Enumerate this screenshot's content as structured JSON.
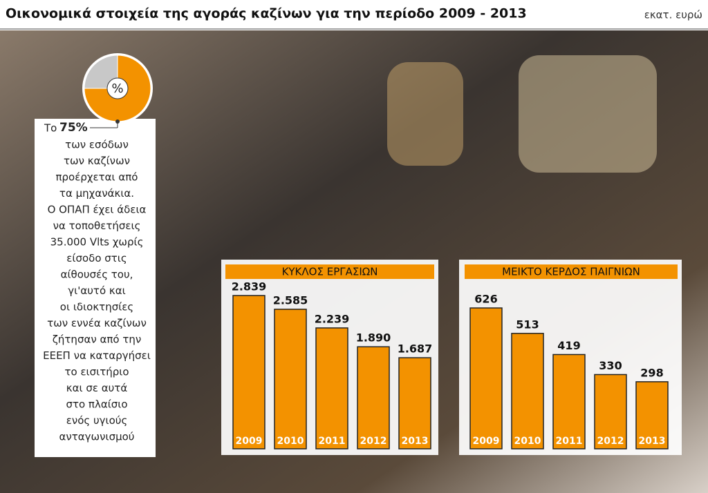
{
  "header": {
    "title": "Οικονομικά στοιχεία της αγοράς καζίνων για την περίοδο 2009 - 2013",
    "unit": "εκατ. ευρώ"
  },
  "chart_data": [
    {
      "type": "pie",
      "center_label": "%",
      "values": [
        75,
        25
      ],
      "value_labels": [
        "75%",
        null
      ],
      "colors": [
        "#f39200",
        "#c8c8c8"
      ],
      "annotation": [
        "Το",
        "των εσόδων",
        "των καζίνων",
        "προέρχεται από",
        "τα μηχανάκια.",
        "Ο ΟΠΑΠ έχει άδεια",
        "να τοποθετήσεις",
        "35.000 Vlts χωρίς",
        "είσοδο στις",
        "αίθουσές του,",
        "γι'αυτό και",
        "οι ιδιοκτησίες",
        "των εννέα καζίνων",
        "ζήτησαν από την",
        "ΕΕΕΠ να καταργήσει",
        "το εισιτήριο",
        "και σε αυτά",
        "στο πλαίσιο",
        "ενός υγιούς",
        "ανταγωνισμού"
      ]
    },
    {
      "type": "bar",
      "title": "ΚΥΚΛΟΣ ΕΡΓΑΣΙΩΝ",
      "categories": [
        "2009",
        "2010",
        "2011",
        "2012",
        "2013"
      ],
      "values": [
        2839,
        2585,
        2239,
        1890,
        1687
      ],
      "value_labels": [
        "2.839",
        "2.585",
        "2.239",
        "1.890",
        "1.687"
      ],
      "color": "#f39200"
    },
    {
      "type": "bar",
      "title": "ΜΕΙΚΤΟ ΚΕΡΔΟΣ ΠΑΙΓΝΙΩΝ",
      "categories": [
        "2009",
        "2010",
        "2011",
        "2012",
        "2013"
      ],
      "values": [
        626,
        513,
        419,
        330,
        298
      ],
      "color": "#f39200"
    }
  ]
}
